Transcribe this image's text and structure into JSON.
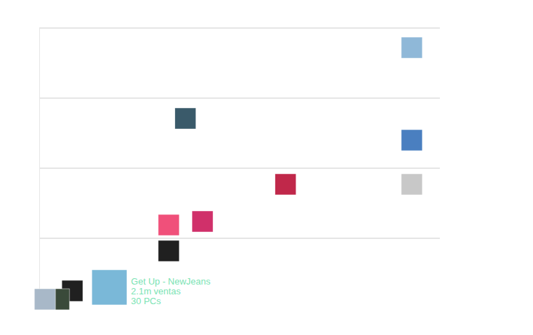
{
  "chart_data": {
    "type": "scatter",
    "x": [
      11.16,
      4.38,
      11.16,
      7.38,
      11.16,
      4.89,
      3.88,
      3.88,
      2.1,
      0.99,
      0.59,
      0.17
    ],
    "values": [
      372,
      271,
      240,
      177,
      177,
      124,
      119,
      82,
      30,
      25,
      13,
      13
    ],
    "colors": [
      "#8fb8d8",
      "#3a5a6a",
      "#4a7fc0",
      "#c0284a",
      "#c8c8c8",
      "#d0306a",
      "#f0507a",
      "#202020",
      "#7ab8d8",
      "#202020",
      "#3a4a3a",
      "#a8b8c8"
    ],
    "xlim": [
      0,
      12
    ],
    "ylim": [
      0,
      400
    ],
    "yticks": [
      100,
      200,
      300,
      400
    ],
    "grid": true,
    "tick_labels": false,
    "annotation": {
      "x": 2.1,
      "y": 30,
      "text": [
        "Get Up - NewJeans",
        "2.1m ventas",
        "30 PCs"
      ]
    }
  }
}
